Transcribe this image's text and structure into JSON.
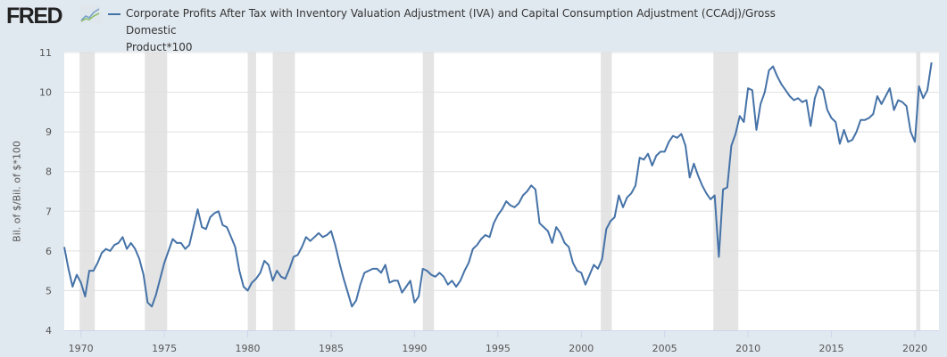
{
  "header": {
    "logo_text": "FRED",
    "logo_icon": "line-chart-icon",
    "title_line1": "Corporate Profits After Tax with Inventory Valuation Adjustment (IVA) and Capital Consumption Adjustment (CCAdj)/Gross Domestic",
    "title_line2": "Product*100"
  },
  "colors": {
    "series": "#4572a7",
    "recession": "#e4e4e4",
    "background": "#e1e9f0",
    "plot": "#ffffff",
    "grid": "#e0e0e0"
  },
  "chart_data": {
    "type": "line",
    "title": "Corporate Profits After Tax with Inventory Valuation Adjustment (IVA) and Capital Consumption Adjustment (CCAdj)/Gross Domestic Product*100",
    "xlabel": "",
    "ylabel": "Bil. of $/Bil. of $*100",
    "ylim": [
      4,
      11
    ],
    "xlim": [
      1969.0,
      2021.5
    ],
    "yticks": [
      4,
      5,
      6,
      7,
      8,
      9,
      10,
      11
    ],
    "xticks": [
      1970,
      1975,
      1980,
      1985,
      1990,
      1995,
      2000,
      2005,
      2010,
      2015,
      2020
    ],
    "grid": true,
    "legend": "top-left",
    "recessions": [
      [
        1969.92,
        1970.83
      ],
      [
        1973.83,
        1975.17
      ],
      [
        1980.0,
        1980.5
      ],
      [
        1981.5,
        1982.83
      ],
      [
        1990.5,
        1991.17
      ],
      [
        2001.17,
        2001.83
      ],
      [
        2007.92,
        2009.42
      ],
      [
        2020.08,
        2020.33
      ]
    ],
    "series": [
      {
        "name": "Corporate Profits After Tax with IVA and CCAdj / GDP * 100",
        "start": "1969-Q1",
        "frequency": "quarterly",
        "values": [
          6.1,
          5.55,
          5.1,
          5.4,
          5.2,
          4.85,
          5.5,
          5.5,
          5.7,
          5.95,
          6.05,
          6.0,
          6.15,
          6.2,
          6.35,
          6.05,
          6.2,
          6.05,
          5.8,
          5.4,
          4.7,
          4.6,
          4.9,
          5.3,
          5.7,
          6.0,
          6.3,
          6.2,
          6.2,
          6.05,
          6.15,
          6.6,
          7.05,
          6.6,
          6.55,
          6.85,
          6.95,
          7.0,
          6.65,
          6.6,
          6.35,
          6.1,
          5.5,
          5.1,
          5.0,
          5.2,
          5.3,
          5.45,
          5.75,
          5.65,
          5.25,
          5.5,
          5.35,
          5.3,
          5.55,
          5.85,
          5.9,
          6.1,
          6.35,
          6.25,
          6.35,
          6.45,
          6.35,
          6.4,
          6.5,
          6.15,
          5.7,
          5.3,
          4.95,
          4.6,
          4.75,
          5.15,
          5.45,
          5.5,
          5.55,
          5.55,
          5.45,
          5.65,
          5.2,
          5.25,
          5.25,
          4.95,
          5.1,
          5.25,
          4.7,
          4.85,
          5.55,
          5.5,
          5.4,
          5.35,
          5.45,
          5.35,
          5.15,
          5.25,
          5.1,
          5.25,
          5.5,
          5.7,
          6.05,
          6.15,
          6.3,
          6.4,
          6.35,
          6.7,
          6.9,
          7.05,
          7.25,
          7.15,
          7.1,
          7.2,
          7.4,
          7.5,
          7.65,
          7.55,
          6.7,
          6.6,
          6.5,
          6.2,
          6.6,
          6.45,
          6.2,
          6.1,
          5.7,
          5.5,
          5.45,
          5.15,
          5.4,
          5.65,
          5.55,
          5.8,
          6.55,
          6.75,
          6.85,
          7.4,
          7.1,
          7.35,
          7.45,
          7.65,
          8.35,
          8.3,
          8.45,
          8.15,
          8.4,
          8.5,
          8.5,
          8.75,
          8.9,
          8.85,
          8.95,
          8.65,
          7.85,
          8.2,
          7.9,
          7.65,
          7.45,
          7.3,
          7.4,
          5.85,
          7.55,
          7.6,
          8.65,
          8.95,
          9.4,
          9.25,
          10.1,
          10.05,
          9.05,
          9.7,
          10.0,
          10.55,
          10.65,
          10.4,
          10.2,
          10.05,
          9.9,
          9.8,
          9.85,
          9.75,
          9.8,
          9.15,
          9.85,
          10.15,
          10.05,
          9.55,
          9.35,
          9.25,
          8.7,
          9.05,
          8.75,
          8.8,
          9.0,
          9.3,
          9.3,
          9.35,
          9.45,
          9.9,
          9.7,
          9.9,
          10.1,
          9.55,
          9.8,
          9.75,
          9.65,
          9.0,
          8.75,
          10.15,
          9.85,
          10.05,
          10.75
        ]
      }
    ]
  }
}
